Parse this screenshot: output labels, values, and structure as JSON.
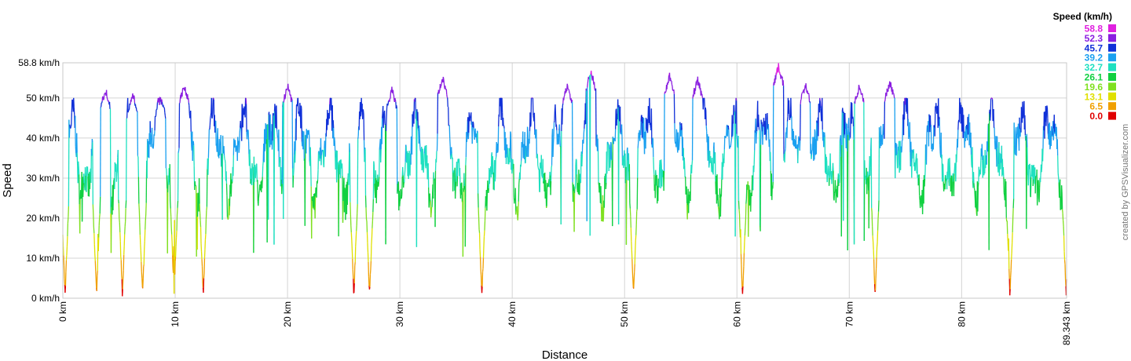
{
  "chart_data": {
    "type": "line",
    "xlabel": "Distance",
    "ylabel": "Speed",
    "xlim": [
      0,
      89.343
    ],
    "ylim": [
      0,
      58.8
    ],
    "x_ticks": [
      {
        "value": 0,
        "label": "0 km"
      },
      {
        "value": 10,
        "label": "10 km"
      },
      {
        "value": 20,
        "label": "20 km"
      },
      {
        "value": 30,
        "label": "30 km"
      },
      {
        "value": 40,
        "label": "40 km"
      },
      {
        "value": 50,
        "label": "50 km"
      },
      {
        "value": 60,
        "label": "60 km"
      },
      {
        "value": 70,
        "label": "70 km"
      },
      {
        "value": 80,
        "label": "80 km"
      },
      {
        "value": 89.343,
        "label": "89.343 km"
      }
    ],
    "y_ticks": [
      {
        "value": 0,
        "label": "0 km/h"
      },
      {
        "value": 10,
        "label": "10 km/h"
      },
      {
        "value": 20,
        "label": "20 km/h"
      },
      {
        "value": 30,
        "label": "30 km/h"
      },
      {
        "value": 40,
        "label": "40 km/h"
      },
      {
        "value": 50,
        "label": "50 km/h"
      },
      {
        "value": 58.8,
        "label": "58.8 km/h"
      }
    ],
    "grid": true,
    "legend": {
      "title": "Speed (km/h)",
      "placement": "top-right",
      "entries": [
        {
          "label": "58.8",
          "color": "#e020e0"
        },
        {
          "label": "52.3",
          "color": "#8a1ee0"
        },
        {
          "label": "45.7",
          "color": "#1030d8"
        },
        {
          "label": "39.2",
          "color": "#1aa0f0"
        },
        {
          "label": "32.7",
          "color": "#1ee0c0"
        },
        {
          "label": "26.1",
          "color": "#10d040"
        },
        {
          "label": "19.6",
          "color": "#80e020"
        },
        {
          "label": "13.1",
          "color": "#e0e000"
        },
        {
          "label": "6.5",
          "color": "#f0a000"
        },
        {
          "label": "0.0",
          "color": "#e00000"
        }
      ]
    },
    "profile_summary": {
      "stops_at_km": [
        0.2,
        3.0,
        5.3,
        7.1,
        9.9,
        12.5,
        25.9,
        27.3,
        37.3,
        50.8,
        60.5,
        72.3,
        84.3,
        89.3
      ],
      "peaks": [
        {
          "x": 3.8,
          "y": 53
        },
        {
          "x": 6.2,
          "y": 52
        },
        {
          "x": 8.7,
          "y": 51
        },
        {
          "x": 10.8,
          "y": 54
        },
        {
          "x": 20.0,
          "y": 54
        },
        {
          "x": 29.3,
          "y": 53
        },
        {
          "x": 33.8,
          "y": 56
        },
        {
          "x": 44.9,
          "y": 54
        },
        {
          "x": 47.0,
          "y": 57.5
        },
        {
          "x": 54.0,
          "y": 56.5
        },
        {
          "x": 56.5,
          "y": 55.5
        },
        {
          "x": 63.7,
          "y": 58.8
        },
        {
          "x": 66.1,
          "y": 54.5
        },
        {
          "x": 70.9,
          "y": 54
        },
        {
          "x": 73.6,
          "y": 55
        }
      ],
      "typical_range_kmh": [
        25,
        50
      ]
    },
    "credit": "created by GPSVisualizer.com"
  }
}
